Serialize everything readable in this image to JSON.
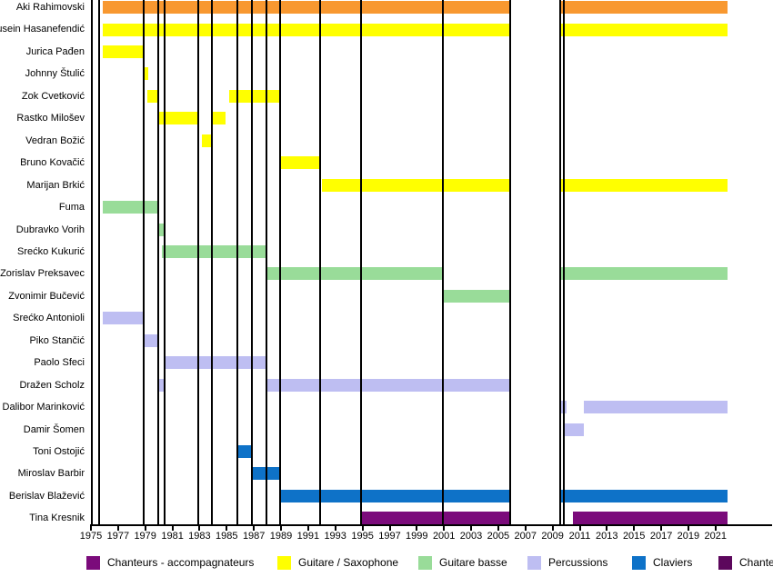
{
  "chart_data": {
    "type": "timeline",
    "description": "Band membership timeline (Gantt-style), years on x-axis, one row per member; vertical black lines mark release/change dates",
    "x_axis": {
      "start_year": 1975,
      "end_year": 2023,
      "tick_years": [
        1975,
        1977,
        1979,
        1981,
        1983,
        1985,
        1987,
        1989,
        1991,
        1993,
        1995,
        1997,
        1999,
        2001,
        2003,
        2005,
        2007,
        2009,
        2011,
        2013,
        2015,
        2017,
        2019,
        2021
      ]
    },
    "palette": {
      "orange": "#F89830",
      "yellow": "#FFFF00",
      "green": "#99DC99",
      "lavender": "#BEBEF2",
      "blue": "#0E72C8",
      "purple": "#7B0B7B"
    },
    "members": [
      {
        "name": "Aki Rahimovski",
        "color": "orange",
        "intervals": [
          [
            1975.9,
            2005.9
          ],
          [
            2009.6,
            2021.9
          ]
        ]
      },
      {
        "name": "Husein Hasanefendić",
        "color": "yellow",
        "intervals": [
          [
            1975.9,
            2005.9
          ],
          [
            2009.6,
            2021.9
          ]
        ]
      },
      {
        "name": "Jurica Pađen",
        "color": "yellow",
        "intervals": [
          [
            1975.9,
            1978.9
          ]
        ]
      },
      {
        "name": "Johnny Štulić",
        "color": "yellow",
        "intervals": [
          [
            1978.9,
            1979.25
          ]
        ]
      },
      {
        "name": "Zok Cvetković",
        "color": "yellow",
        "intervals": [
          [
            1979.15,
            1980.0
          ],
          [
            1985.2,
            1988.9
          ]
        ]
      },
      {
        "name": "Rastko Milošev",
        "color": "yellow",
        "intervals": [
          [
            1980.0,
            1983.0
          ],
          [
            1984.0,
            1984.9
          ]
        ]
      },
      {
        "name": "Vedran Božić",
        "color": "yellow",
        "intervals": [
          [
            1983.2,
            1983.9
          ]
        ]
      },
      {
        "name": "Bruno Kovačić",
        "color": "yellow",
        "intervals": [
          [
            1988.9,
            1991.9
          ]
        ]
      },
      {
        "name": "Marijan Brkić",
        "color": "yellow",
        "intervals": [
          [
            1992.0,
            2005.9
          ],
          [
            2009.6,
            2021.9
          ]
        ]
      },
      {
        "name": "Fuma",
        "color": "green",
        "intervals": [
          [
            1975.9,
            1980.0
          ]
        ]
      },
      {
        "name": "Dubravko Vorih",
        "color": "green",
        "intervals": [
          [
            1979.9,
            1980.4
          ]
        ]
      },
      {
        "name": "Srećko Kukurić",
        "color": "green",
        "intervals": [
          [
            1980.2,
            1987.9
          ]
        ]
      },
      {
        "name": "Zorislav Preksavec",
        "color": "green",
        "intervals": [
          [
            1988.0,
            2001.0
          ],
          [
            2009.6,
            2021.9
          ]
        ]
      },
      {
        "name": "Zvonimir Bučević",
        "color": "green",
        "intervals": [
          [
            2001.0,
            2005.9
          ]
        ]
      },
      {
        "name": "Srećko Antonioli",
        "color": "lavender",
        "intervals": [
          [
            1975.9,
            1978.9
          ]
        ]
      },
      {
        "name": "Piko Stančić",
        "color": "lavender",
        "intervals": [
          [
            1978.9,
            1980.0
          ]
        ]
      },
      {
        "name": "Paolo Sfeci",
        "color": "lavender",
        "intervals": [
          [
            1980.4,
            1987.9
          ]
        ]
      },
      {
        "name": "Dražen Scholz",
        "color": "lavender",
        "intervals": [
          [
            1979.9,
            1980.4
          ],
          [
            1988.0,
            2005.9
          ]
        ]
      },
      {
        "name": "Dalibor Marinković",
        "color": "lavender",
        "intervals": [
          [
            2009.6,
            2010.0
          ],
          [
            2011.3,
            2021.9
          ]
        ]
      },
      {
        "name": "Damir Šomen",
        "color": "lavender",
        "intervals": [
          [
            2009.9,
            2011.3
          ]
        ]
      },
      {
        "name": "Toni Ostojić",
        "color": "blue",
        "intervals": [
          [
            1985.8,
            1986.9
          ]
        ]
      },
      {
        "name": "Miroslav Barbir",
        "color": "blue",
        "intervals": [
          [
            1986.9,
            1988.9
          ]
        ]
      },
      {
        "name": "Berislav Blažević",
        "color": "blue",
        "intervals": [
          [
            1988.9,
            2005.9
          ],
          [
            2009.6,
            2021.9
          ]
        ]
      },
      {
        "name": "Tina Kresnik",
        "color": "purple",
        "intervals": [
          [
            1994.9,
            2005.9
          ],
          [
            2010.5,
            2021.9
          ]
        ]
      }
    ],
    "event_lines_years": [
      1975.05,
      1975.6,
      1978.9,
      1979.95,
      1980.45,
      1982.9,
      1983.9,
      1985.75,
      1986.85,
      1987.9,
      1988.9,
      1991.9,
      1994.9,
      2000.9,
      2005.85,
      2009.55,
      2009.85
    ],
    "legend": [
      {
        "label": "Chanteurs - accompagnateurs",
        "color": "#7B0B7B"
      },
      {
        "label": "Guitare / Saxophone",
        "color": "#FFFF00"
      },
      {
        "label": "Guitare basse",
        "color": "#99DC99"
      },
      {
        "label": "Percussions",
        "color": "#BEBEF2"
      },
      {
        "label": "Claviers",
        "color": "#0E72C8"
      },
      {
        "label": "Chanteur",
        "color": "#5C075C"
      }
    ]
  }
}
